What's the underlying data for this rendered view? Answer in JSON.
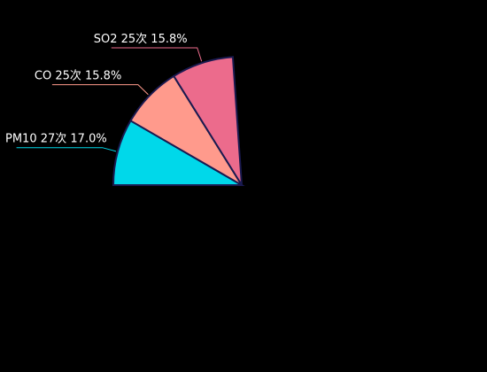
{
  "chart_data": {
    "type": "pie",
    "categories": [
      "PM10",
      "CO",
      "SO2"
    ],
    "values": [
      17.0,
      15.8,
      15.8
    ],
    "counts": [
      27,
      25,
      25
    ],
    "value_labels": [
      "PM10 27次 17.0%",
      "CO 25次 15.8%",
      "SO2 25次 15.8%"
    ],
    "colors": [
      "#00d8ea",
      "#ff9a8c",
      "#ec6b8c"
    ]
  }
}
